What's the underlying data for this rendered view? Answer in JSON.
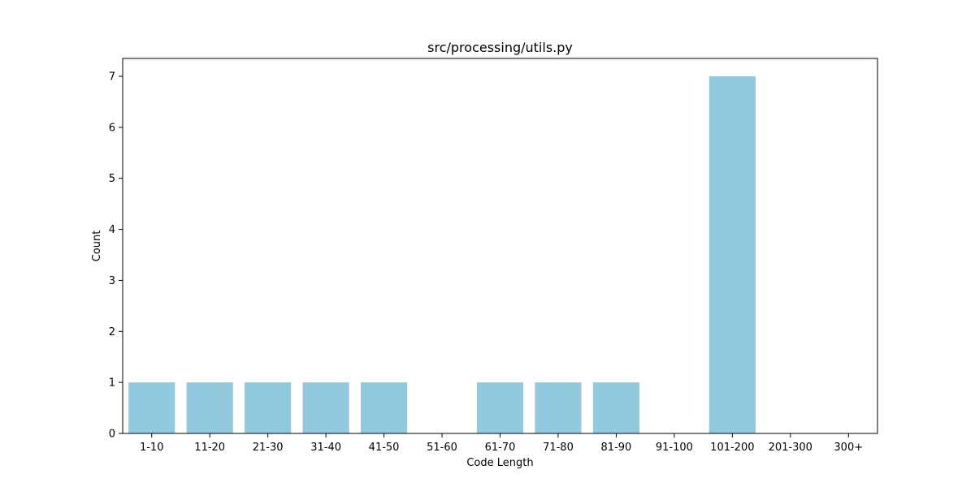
{
  "chart_data": {
    "type": "bar",
    "title": "src/processing/utils.py",
    "xlabel": "Code Length",
    "ylabel": "Count",
    "categories": [
      "1-10",
      "11-20",
      "21-30",
      "31-40",
      "41-50",
      "51-60",
      "61-70",
      "71-80",
      "81-90",
      "91-100",
      "101-200",
      "201-300",
      "300+"
    ],
    "values": [
      1,
      1,
      1,
      1,
      1,
      0,
      1,
      1,
      1,
      0,
      7,
      0,
      0
    ],
    "ylim": [
      0,
      7.35
    ],
    "yticks": [
      "0",
      "1",
      "2",
      "3",
      "4",
      "5",
      "6",
      "7"
    ],
    "bar_color": "#92c9de",
    "grid": false,
    "legend": "none"
  }
}
